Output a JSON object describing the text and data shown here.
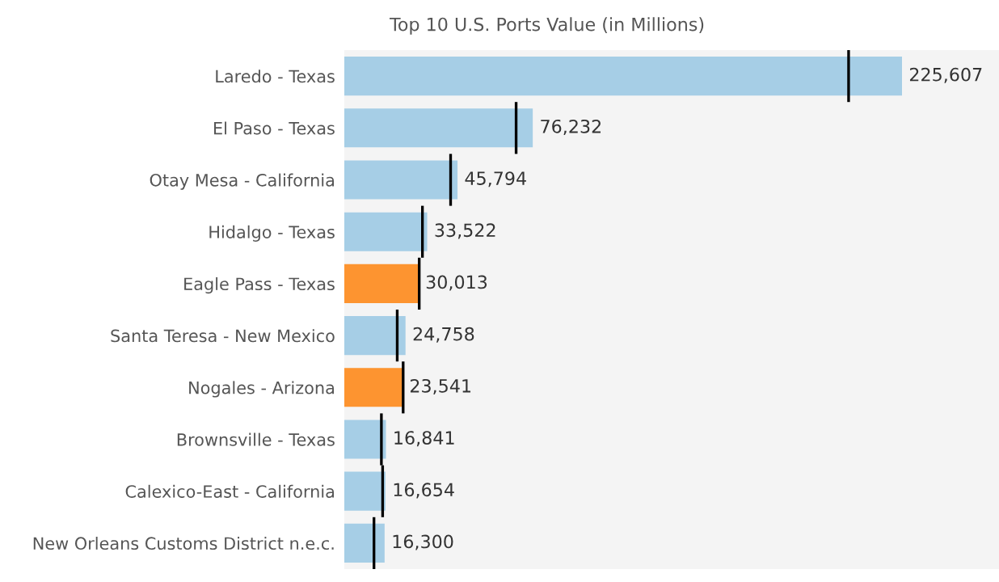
{
  "chart_data": {
    "type": "bar",
    "orientation": "horizontal",
    "title": "Top 10 U.S. Ports Value (in Millions)",
    "categories": [
      "Laredo - Texas",
      "El Paso - Texas",
      "Otay Mesa - California",
      "Hidalgo - Texas",
      "Eagle Pass - Texas",
      "Santa Teresa - New Mexico",
      "Nogales - Arizona",
      "Brownsville - Texas",
      "Calexico-East - California",
      "New Orleans Customs District n.e.c."
    ],
    "series": [
      {
        "values": [
          225607,
          76232,
          45794,
          33522,
          30013,
          24758,
          23541,
          16841,
          16654,
          16300
        ],
        "colors": [
          "#a6cee6",
          "#a6cee6",
          "#a6cee6",
          "#a6cee6",
          "#fd9430",
          "#a6cee6",
          "#fd9430",
          "#a6cee6",
          "#a6cee6",
          "#a6cee6"
        ],
        "value_labels": [
          "225,607",
          "76,232",
          "45,794",
          "33,522",
          "30,013",
          "24,758",
          "23,541",
          "16,841",
          "16,654",
          "16,300"
        ]
      }
    ],
    "ref_lines": [
      {
        "axis": "x",
        "value": 204000,
        "color": "#000000"
      },
      {
        "axis": "x",
        "value": 69500,
        "color": "#000000"
      },
      {
        "axis": "x",
        "value": 43000,
        "color": "#000000"
      },
      {
        "axis": "x",
        "value": 31600,
        "color": "#000000"
      },
      {
        "axis": "x",
        "value": 30300,
        "color": "#000000"
      },
      {
        "axis": "x",
        "value": 21400,
        "color": "#000000"
      },
      {
        "axis": "x",
        "value": 23800,
        "color": "#000000"
      },
      {
        "axis": "x",
        "value": 15000,
        "color": "#000000"
      },
      {
        "axis": "x",
        "value": 15500,
        "color": "#000000"
      },
      {
        "axis": "x",
        "value": 12000,
        "color": "#000000"
      }
    ],
    "grid": false,
    "legend": false
  }
}
